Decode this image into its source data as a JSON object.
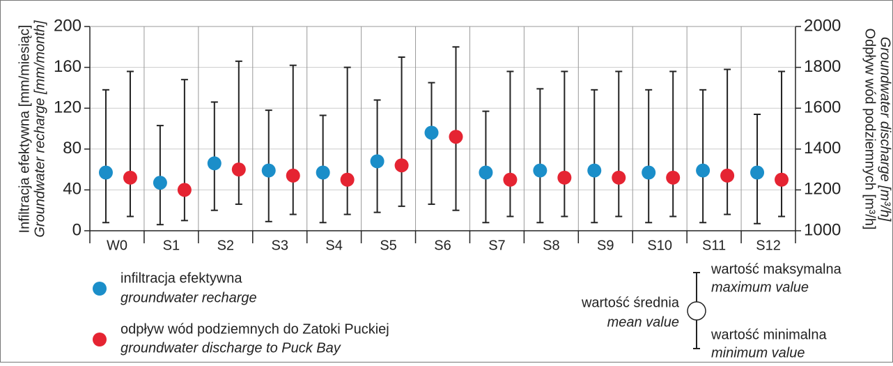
{
  "chart_data": {
    "type": "errorbar",
    "y_label": "Infiltracja efektywna [mm/miesiąc]",
    "y_label_en": "Groundwater recharge [mm/month]",
    "y2_label": "Odpływ wód podziemnych [m³/h]",
    "y2_label_en": "Groundwater discharge [m³/h]",
    "categories": [
      "W0",
      "S1",
      "S2",
      "S3",
      "S4",
      "S5",
      "S6",
      "S7",
      "S8",
      "S9",
      "S10",
      "S11",
      "S12"
    ],
    "ylim": [
      0,
      200
    ],
    "yticks": [
      0,
      40,
      80,
      120,
      160,
      200
    ],
    "y2lim": [
      1000,
      2000
    ],
    "y2ticks": [
      1000,
      1200,
      1400,
      1600,
      1800,
      2000
    ],
    "grid": true,
    "series": [
      {
        "name": "infiltracja efektywna",
        "name_en": "groundwater recharge",
        "color": "#1b8ec9",
        "values": [
          57,
          47,
          66,
          59,
          57,
          68,
          96,
          57,
          59,
          59,
          57,
          59,
          57
        ],
        "max": [
          138,
          103,
          126,
          118,
          113,
          128,
          145,
          117,
          139,
          138,
          138,
          138,
          114
        ],
        "min": [
          8,
          6,
          20,
          9,
          8,
          18,
          26,
          8,
          8,
          8,
          8,
          8,
          7
        ]
      },
      {
        "name": "odpływ wód podziemnych do Zatoki Puckiej",
        "name_en": "groundwater discharge to Puck Bay",
        "color": "#e52432",
        "axis": "y2",
        "values": [
          1260,
          1200,
          1300,
          1270,
          1250,
          1320,
          1460,
          1250,
          1260,
          1260,
          1260,
          1270,
          1250
        ],
        "max": [
          1780,
          1740,
          1830,
          1810,
          1800,
          1850,
          1900,
          1780,
          1780,
          1780,
          1780,
          1790,
          1780
        ],
        "min": [
          1070,
          1050,
          1130,
          1080,
          1080,
          1120,
          1100,
          1070,
          1070,
          1070,
          1070,
          1080,
          1070
        ]
      }
    ],
    "key": {
      "mean": "wartość średnia",
      "mean_en": "mean value",
      "max": "wartość maksymalna",
      "max_en": "maximum value",
      "min": "wartość minimalna",
      "min_en": "minimum value"
    }
  }
}
